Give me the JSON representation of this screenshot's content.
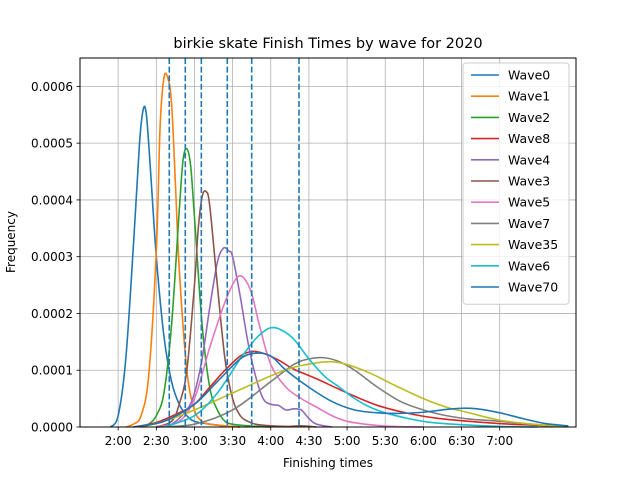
{
  "chart_data": {
    "type": "line",
    "title": "birkie skate Finish Times by wave for 2020",
    "xlabel": "Finishing times",
    "ylabel": "Frequency",
    "xlim": [
      1.5,
      8.0
    ],
    "ylim": [
      0,
      0.00065
    ],
    "x_ticks": [
      {
        "value": 2.0,
        "label": "2:00"
      },
      {
        "value": 2.5,
        "label": "2:30"
      },
      {
        "value": 3.0,
        "label": "3:00"
      },
      {
        "value": 3.5,
        "label": "3:30"
      },
      {
        "value": 4.0,
        "label": "4:00"
      },
      {
        "value": 4.5,
        "label": "4:30"
      },
      {
        "value": 5.0,
        "label": "5:00"
      },
      {
        "value": 5.5,
        "label": "5:30"
      },
      {
        "value": 6.0,
        "label": "6:00"
      },
      {
        "value": 6.5,
        "label": "6:30"
      },
      {
        "value": 7.0,
        "label": "7:00"
      }
    ],
    "y_ticks": [
      {
        "value": 0.0,
        "label": "0.0000"
      },
      {
        "value": 0.0001,
        "label": "0.0001"
      },
      {
        "value": 0.0002,
        "label": "0.0002"
      },
      {
        "value": 0.0003,
        "label": "0.0003"
      },
      {
        "value": 0.0004,
        "label": "0.0004"
      },
      {
        "value": 0.0005,
        "label": "0.0005"
      },
      {
        "value": 0.0006,
        "label": "0.0006"
      }
    ],
    "grid": true,
    "legend_position": "upper right",
    "vlines": {
      "color": "#1f77b4",
      "style": "dashed",
      "x": [
        2.67,
        2.88,
        3.09,
        3.43,
        3.75,
        4.37
      ]
    },
    "series": [
      {
        "name": "Wave0",
        "color": "#1f77b4",
        "x": [
          1.9,
          2.0,
          2.1,
          2.2,
          2.28,
          2.33,
          2.37,
          2.42,
          2.5,
          2.6,
          2.7,
          2.8,
          2.9,
          3.0,
          3.2,
          3.4,
          3.6
        ],
        "y": [
          0.0,
          2e-05,
          0.00012,
          0.00032,
          0.0005,
          0.00056,
          0.00055,
          0.00046,
          0.0003,
          0.00016,
          8e-05,
          4e-05,
          2e-05,
          1e-05,
          5e-06,
          2e-06,
          0.0
        ]
      },
      {
        "name": "Wave1",
        "color": "#ff7f0e",
        "x": [
          2.1,
          2.2,
          2.3,
          2.4,
          2.5,
          2.55,
          2.6,
          2.65,
          2.7,
          2.75,
          2.8,
          2.9,
          3.0,
          3.1,
          3.2,
          3.4,
          3.6
        ],
        "y": [
          0.0,
          5e-06,
          2e-05,
          9e-05,
          0.00031,
          0.00053,
          0.000615,
          0.000615,
          0.00057,
          0.00043,
          0.00028,
          0.0001,
          3e-05,
          1e-05,
          5e-06,
          2e-06,
          0.0
        ]
      },
      {
        "name": "Wave2",
        "color": "#2ca02c",
        "x": [
          2.3,
          2.4,
          2.5,
          2.6,
          2.7,
          2.8,
          2.85,
          2.9,
          2.95,
          3.0,
          3.1,
          3.2,
          3.3,
          3.4,
          3.5,
          3.7,
          4.0
        ],
        "y": [
          0.0,
          5e-06,
          2e-05,
          6e-05,
          0.00018,
          0.00038,
          0.00047,
          0.00049,
          0.00046,
          0.00037,
          0.00018,
          7e-05,
          3e-05,
          1e-05,
          5e-06,
          2e-06,
          0.0
        ]
      },
      {
        "name": "Wave8",
        "color": "#d62728",
        "x": [
          2.2,
          2.5,
          2.8,
          3.0,
          3.2,
          3.4,
          3.6,
          3.75,
          3.9,
          4.1,
          4.3,
          4.6,
          5.0,
          5.4,
          5.8,
          6.2,
          6.6,
          7.0,
          7.5,
          7.9
        ],
        "y": [
          0.0,
          8e-06,
          2.5e-05,
          4e-05,
          7e-05,
          0.0001,
          0.000125,
          0.000133,
          0.00013,
          0.000118,
          0.000102,
          8.5e-05,
          6e-05,
          3.8e-05,
          2.4e-05,
          1.5e-05,
          1e-05,
          6e-06,
          3e-06,
          1e-06
        ]
      },
      {
        "name": "Wave4",
        "color": "#9467bd",
        "x": [
          2.5,
          2.7,
          2.9,
          3.0,
          3.1,
          3.2,
          3.3,
          3.38,
          3.45,
          3.5,
          3.6,
          3.7,
          3.8,
          3.9,
          4.0,
          4.1,
          4.2,
          4.3,
          4.4,
          4.5,
          4.6,
          4.8
        ],
        "y": [
          0.0,
          5e-06,
          3e-05,
          6e-05,
          0.00012,
          0.00021,
          0.00029,
          0.000315,
          0.00031,
          0.0003,
          0.00023,
          0.00015,
          9e-05,
          5e-05,
          4e-05,
          3.8e-05,
          3e-05,
          3.2e-05,
          3e-05,
          1.5e-05,
          5e-06,
          0.0
        ]
      },
      {
        "name": "Wave3",
        "color": "#8c564b",
        "x": [
          2.5,
          2.7,
          2.8,
          2.9,
          3.0,
          3.05,
          3.1,
          3.15,
          3.2,
          3.3,
          3.4,
          3.5,
          3.6,
          3.7,
          3.8,
          4.0,
          4.2,
          4.4,
          4.6
        ],
        "y": [
          0.0,
          1e-05,
          4e-05,
          0.0001,
          0.00025,
          0.00035,
          0.000405,
          0.000415,
          0.00039,
          0.00025,
          0.00012,
          5e-05,
          2e-05,
          1e-05,
          5e-06,
          2e-06,
          1e-06,
          2e-06,
          0.0
        ]
      },
      {
        "name": "Wave5",
        "color": "#e377c2",
        "x": [
          2.5,
          2.8,
          3.0,
          3.2,
          3.4,
          3.55,
          3.65,
          3.75,
          3.85,
          4.0,
          4.2,
          4.4,
          4.6,
          4.8,
          5.0,
          5.3,
          5.6,
          6.0
        ],
        "y": [
          0.0,
          1e-05,
          5e-05,
          0.00014,
          0.00022,
          0.000262,
          0.000262,
          0.000235,
          0.00018,
          0.00011,
          7e-05,
          5e-05,
          3.5e-05,
          2e-05,
          1e-05,
          4e-06,
          1e-06,
          0.0
        ]
      },
      {
        "name": "Wave7",
        "color": "#7f7f7f",
        "x": [
          2.5,
          3.0,
          3.5,
          4.0,
          4.3,
          4.5,
          4.7,
          4.9,
          5.1,
          5.4,
          5.7,
          6.0,
          6.3,
          6.6,
          7.0,
          7.5,
          7.9
        ],
        "y": [
          0.0,
          5e-06,
          3e-05,
          8e-05,
          0.00011,
          0.00012,
          0.000122,
          0.000115,
          0.0001,
          7e-05,
          4.5e-05,
          3e-05,
          2e-05,
          1.4e-05,
          1e-05,
          4e-06,
          1e-06
        ]
      },
      {
        "name": "Wave35",
        "color": "#bcbd22",
        "x": [
          2.3,
          2.6,
          3.0,
          3.5,
          4.0,
          4.3,
          4.6,
          4.8,
          5.0,
          5.3,
          5.6,
          6.0,
          6.3,
          6.6,
          7.0,
          7.5,
          7.9
        ],
        "y": [
          0.0,
          1e-05,
          3e-05,
          6e-05,
          9e-05,
          0.000105,
          0.000113,
          0.000115,
          0.00011,
          9.5e-05,
          7.5e-05,
          5e-05,
          3.5e-05,
          2.5e-05,
          1.2e-05,
          4e-06,
          1e-06
        ]
      },
      {
        "name": "Wave6",
        "color": "#17becf",
        "x": [
          2.6,
          3.0,
          3.3,
          3.6,
          3.8,
          3.95,
          4.05,
          4.15,
          4.3,
          4.5,
          4.7,
          4.9,
          5.1,
          5.3,
          5.5,
          5.8,
          6.1,
          6.5,
          7.0,
          7.5
        ],
        "y": [
          0.0,
          2e-05,
          6e-05,
          0.00012,
          0.000155,
          0.000172,
          0.000175,
          0.00017,
          0.000155,
          0.00012,
          9e-05,
          7e-05,
          5e-05,
          3.5e-05,
          2.5e-05,
          1.5e-05,
          8e-06,
          4e-06,
          1e-06,
          0.0
        ]
      },
      {
        "name": "Wave70",
        "color": "#1f77b4",
        "x": [
          2.2,
          2.6,
          3.0,
          3.3,
          3.6,
          3.8,
          4.0,
          4.2,
          4.5,
          4.8,
          5.1,
          5.4,
          5.7,
          6.0,
          6.3,
          6.5,
          6.7,
          7.0,
          7.3,
          7.6,
          7.9
        ],
        "y": [
          0.0,
          1e-05,
          4e-05,
          8e-05,
          0.00012,
          0.00013,
          0.000125,
          0.0001,
          7e-05,
          4.5e-05,
          3e-05,
          2.5e-05,
          2.4e-05,
          2.6e-05,
          3.1e-05,
          3.3e-05,
          3.2e-05,
          2.5e-05,
          1.5e-05,
          6e-06,
          2e-06
        ]
      }
    ]
  }
}
